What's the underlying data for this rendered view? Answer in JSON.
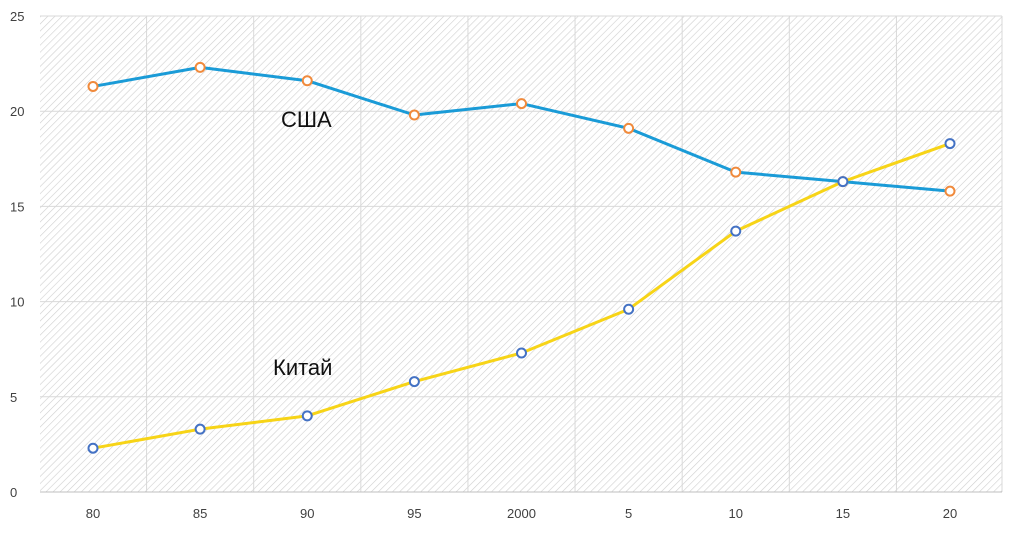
{
  "chart_data": {
    "type": "line",
    "categories": [
      "80",
      "85",
      "90",
      "95",
      "2000",
      "5",
      "10",
      "15",
      "20"
    ],
    "series": [
      {
        "name": "США",
        "color": "#1a9bd7",
        "marker_color": "#f08a3c",
        "values": [
          21.3,
          22.3,
          21.6,
          19.8,
          20.4,
          19.1,
          16.8,
          16.3,
          15.8
        ]
      },
      {
        "name": "Китай",
        "color": "#f7d417",
        "marker_color": "#4472c4",
        "values": [
          2.3,
          3.3,
          4.0,
          5.8,
          7.3,
          9.6,
          13.7,
          16.3,
          18.3
        ]
      }
    ],
    "yticks": [
      0,
      5,
      10,
      15,
      20,
      25
    ],
    "ylim": [
      0,
      25
    ],
    "grid": true,
    "legend": "none"
  }
}
